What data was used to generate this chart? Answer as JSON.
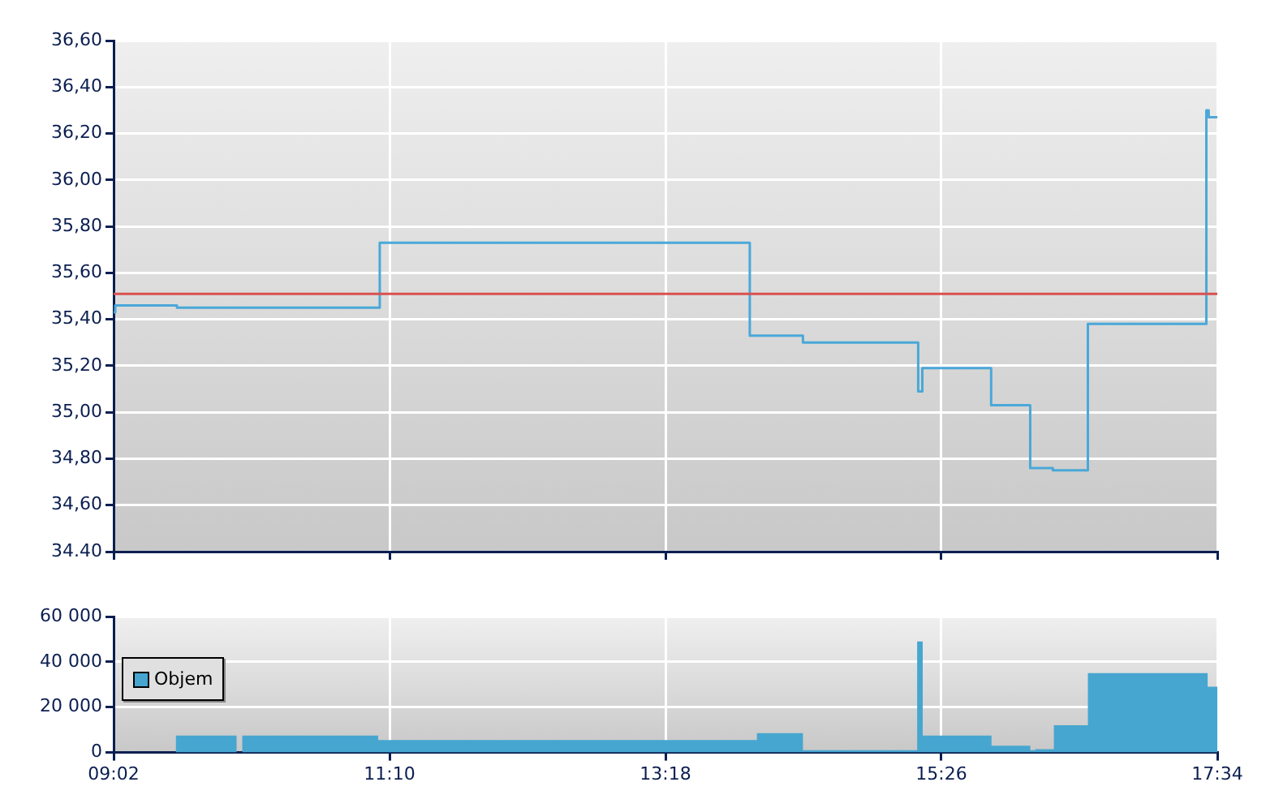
{
  "chart_data": [
    {
      "type": "step",
      "color": "#4aa8d8",
      "x": [
        9.0333,
        9.046,
        9.523,
        11.091,
        13.952,
        14.363,
        15.254,
        15.286,
        15.818,
        16.12,
        16.295,
        16.566,
        17.482,
        17.5,
        17.5667
      ],
      "values": [
        35.43,
        35.46,
        35.45,
        35.73,
        35.33,
        35.3,
        35.09,
        35.19,
        35.03,
        34.76,
        34.75,
        35.38,
        36.3,
        36.27,
        36.27
      ],
      "xlim": [
        9.0333,
        17.5667
      ],
      "xticks": [
        {
          "value": 9.0333,
          "label": null
        },
        {
          "value": 11.1667,
          "label": null
        },
        {
          "value": 13.3,
          "label": null
        },
        {
          "value": 15.4333,
          "label": null
        },
        {
          "value": 17.5667,
          "label": null
        }
      ],
      "ylim": [
        34.4,
        36.6
      ],
      "yticks": [
        {
          "value": 34.4,
          "label": "34.40"
        },
        {
          "value": 34.6,
          "label": "34,60"
        },
        {
          "value": 34.8,
          "label": "34,80"
        },
        {
          "value": 35,
          "label": "35,00"
        },
        {
          "value": 35.2,
          "label": "35,20"
        },
        {
          "value": 35.4,
          "label": "35,40"
        },
        {
          "value": 35.6,
          "label": "35,60"
        },
        {
          "value": 35.8,
          "label": "35,80"
        },
        {
          "value": 36,
          "label": "36,00"
        },
        {
          "value": 36.2,
          "label": "36,20"
        },
        {
          "value": 36.4,
          "label": "36,40"
        },
        {
          "value": 36.6,
          "label": "36,60"
        }
      ],
      "tick_labels": "y",
      "grid": true,
      "ref_lines": [
        {
          "axis": "y",
          "value": 35.51,
          "color": "#d95050"
        }
      ]
    },
    {
      "type": "area",
      "x": [
        9.0333,
        9.515,
        9.984,
        10.028,
        11.079,
        14.007,
        14.363,
        15.246,
        15.289,
        15.821,
        16.121,
        16.159,
        16.303,
        16.566,
        17.492,
        17.5667
      ],
      "series": [
        {
          "name": "Objem",
          "color": "#46a6d0",
          "values": [
            0,
            7500,
            0,
            7500,
            5500,
            8500,
            1000,
            49000,
            7500,
            3000,
            1000,
            1500,
            12000,
            35000,
            29000,
            29000
          ]
        }
      ],
      "xlim": [
        9.0333,
        17.5667
      ],
      "xticks": [
        {
          "value": 9.0333,
          "label": "09:02"
        },
        {
          "value": 11.1667,
          "label": "11:10"
        },
        {
          "value": 13.3,
          "label": "13:18"
        },
        {
          "value": 15.4333,
          "label": "15:26"
        },
        {
          "value": 17.5667,
          "label": "17:34"
        }
      ],
      "ylim": [
        0,
        60000
      ],
      "yticks": [
        {
          "value": 0,
          "label": "0"
        },
        {
          "value": 20000,
          "label": "20 000"
        },
        {
          "value": 40000,
          "label": "40 000"
        },
        {
          "value": 60000,
          "label": "60 000"
        }
      ],
      "grid": true,
      "legend": "left"
    }
  ]
}
